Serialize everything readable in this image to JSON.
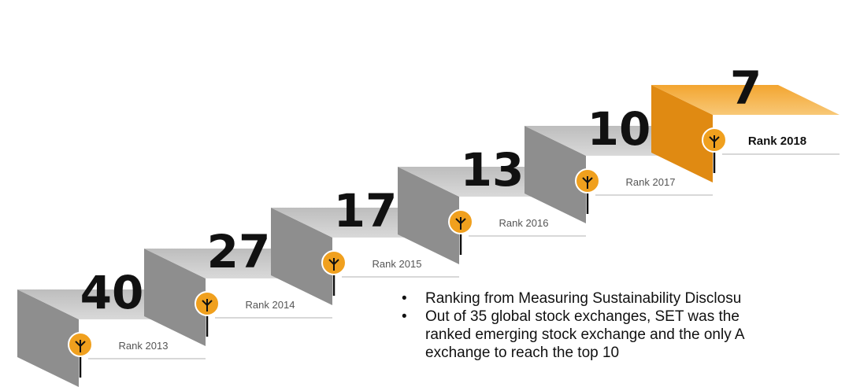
{
  "steps": [
    {
      "rank": "40",
      "label": "Rank 2013"
    },
    {
      "rank": "27",
      "label": "Rank 2014"
    },
    {
      "rank": "17",
      "label": "Rank 2015"
    },
    {
      "rank": "13",
      "label": "Rank 2016"
    },
    {
      "rank": "10",
      "label": "Rank 2017"
    },
    {
      "rank": "7",
      "label": "Rank 2018"
    }
  ],
  "bullets": [
    [
      "Ranking from Measuring Sustainability Disclosu"
    ],
    [
      "Out of 35 global stock exchanges, SET was the",
      "ranked emerging stock exchange and the only A",
      "exchange to reach the top 10"
    ]
  ]
}
